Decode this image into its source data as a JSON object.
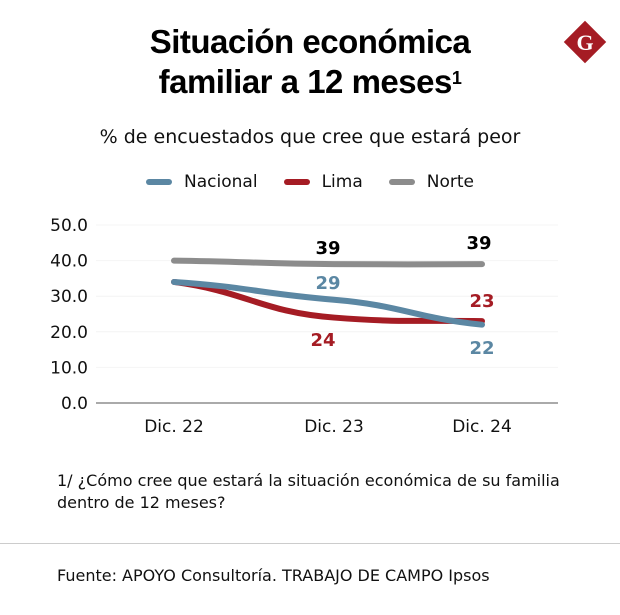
{
  "header": {
    "title_line1": "Situación económica",
    "title_line2": "familiar a 12 meses",
    "title_superscript": "1",
    "subtitle": "% de encuestados que cree que estará peor",
    "logo_letter": "G",
    "logo_color": "#a51c24"
  },
  "chart_data": {
    "type": "line",
    "title": "Situación económica familiar a 12 meses",
    "subtitle": "% de encuestados que cree que estará peor",
    "xlabel": "",
    "ylabel": "",
    "categories": [
      "Dic. 22",
      "Dic. 23",
      "Dic. 24"
    ],
    "ylim": [
      0,
      50
    ],
    "yticks": [
      0,
      10,
      20,
      30,
      40,
      50
    ],
    "ytick_labels": [
      "0.0",
      "10.0",
      "20.0",
      "30.0",
      "40.0",
      "50.0"
    ],
    "grid": false,
    "legend_position": "top-center",
    "series": [
      {
        "name": "Nacional",
        "color": "#5b87a3",
        "values": [
          34,
          29,
          22
        ],
        "labels": [
          "",
          "29",
          "22"
        ]
      },
      {
        "name": "Lima",
        "color": "#a51c24",
        "values": [
          34,
          24,
          23
        ],
        "labels": [
          "",
          "24",
          "23"
        ]
      },
      {
        "name": "Norte",
        "color": "#8c8c8c",
        "values": [
          40,
          39,
          39
        ],
        "labels": [
          "",
          "39",
          "39"
        ],
        "label_color": "#000000"
      }
    ]
  },
  "footer": {
    "footnote": "1/ ¿Cómo cree que estará la situación económica de su familia dentro de 12 meses?",
    "source": "Fuente: APOYO Consultoría. TRABAJO DE CAMPO Ipsos"
  }
}
